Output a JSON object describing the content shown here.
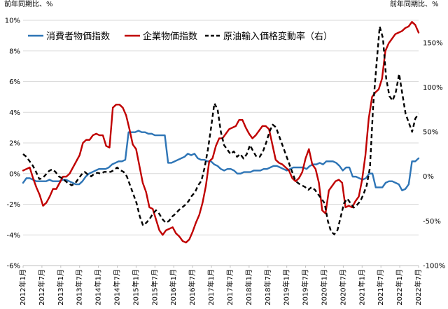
{
  "chart_data": {
    "type": "line",
    "left_axis_unit": "前年同期比、%",
    "right_axis_unit": "前年同期比、%",
    "left_ylim": [
      -6,
      10
    ],
    "left_ticks": [
      "-6%",
      "-4%",
      "-2%",
      "0%",
      "2%",
      "4%",
      "6%",
      "8%",
      "10%"
    ],
    "right_ylim": [
      -100,
      175
    ],
    "right_ticks": [
      "-100%",
      "-50%",
      "0%",
      "50%",
      "100%",
      "150%"
    ],
    "x_tick_labels": [
      "2012年1月",
      "2012年7月",
      "2013年1月",
      "2013年7月",
      "2014年1月",
      "2014年7月",
      "2015年1月",
      "2015年7月",
      "2016年1月",
      "2016年7月",
      "2017年1月",
      "2017年7月",
      "2018年1月",
      "2018年7月",
      "2019年1月",
      "2019年7月",
      "2020年1月",
      "2020年7月",
      "2021年1月",
      "2021年7月",
      "2022年1月",
      "2022年7月"
    ],
    "legend_position": "top-left",
    "grid": "horizontal",
    "series": [
      {
        "name": "消費者物価指数",
        "axis": "left",
        "color": "#2e75b6",
        "dash": "solid",
        "values": [
          -0.6,
          -0.3,
          -0.3,
          -0.4,
          -0.5,
          -0.5,
          -0.5,
          -0.5,
          -0.4,
          -0.5,
          -0.5,
          -0.5,
          -0.4,
          -0.4,
          -0.5,
          -0.6,
          -0.7,
          -0.7,
          -0.5,
          -0.2,
          0.0,
          0.1,
          0.2,
          0.3,
          0.3,
          0.3,
          0.4,
          0.6,
          0.7,
          0.8,
          0.8,
          0.9,
          2.7,
          2.7,
          2.7,
          2.8,
          2.7,
          2.7,
          2.6,
          2.6,
          2.5,
          2.5,
          2.5,
          2.5,
          0.7,
          0.7,
          0.8,
          0.9,
          1.0,
          1.1,
          1.3,
          1.2,
          1.3,
          1.0,
          0.9,
          0.9,
          0.8,
          0.8,
          0.6,
          0.5,
          0.3,
          0.2,
          0.3,
          0.3,
          0.2,
          0.0,
          0.0,
          0.1,
          0.1,
          0.1,
          0.2,
          0.2,
          0.2,
          0.3,
          0.3,
          0.4,
          0.5,
          0.5,
          0.4,
          0.3,
          0.2,
          0.3,
          0.4,
          0.4,
          0.4,
          0.4,
          0.3,
          0.5,
          0.6,
          0.6,
          0.7,
          0.6,
          0.8,
          0.8,
          0.8,
          0.7,
          0.5,
          0.2,
          0.4,
          0.4,
          -0.2,
          -0.2,
          -0.3,
          -0.4,
          -0.3,
          0.0,
          0.0,
          -0.9,
          -0.9,
          -0.9,
          -0.6,
          -0.5,
          -0.5,
          -0.6,
          -0.7,
          -1.1,
          -1.0,
          -0.7,
          0.8,
          0.8,
          1.0
        ]
      },
      {
        "name": "企業物価指数",
        "axis": "left",
        "color": "#c00000",
        "dash": "solid",
        "values": [
          0.2,
          0.3,
          0.4,
          -0.3,
          -0.9,
          -1.4,
          -2.1,
          -1.9,
          -1.5,
          -1.0,
          -1.0,
          -0.6,
          -0.2,
          -0.2,
          0.0,
          0.4,
          0.8,
          1.2,
          2.0,
          2.2,
          2.2,
          2.5,
          2.6,
          2.5,
          2.5,
          1.8,
          1.7,
          4.3,
          4.5,
          4.5,
          4.3,
          3.8,
          2.9,
          1.9,
          1.6,
          0.5,
          -0.6,
          -1.2,
          -2.2,
          -2.3,
          -3.0,
          -3.7,
          -4.0,
          -3.7,
          -3.6,
          -3.5,
          -3.9,
          -4.1,
          -4.4,
          -4.5,
          -4.3,
          -3.8,
          -3.2,
          -2.7,
          -1.9,
          -0.8,
          0.8,
          1.0,
          1.8,
          2.3,
          2.3,
          2.6,
          2.9,
          3.0,
          3.1,
          3.5,
          3.5,
          3.0,
          2.6,
          2.3,
          2.5,
          2.8,
          3.1,
          3.1,
          2.9,
          1.9,
          0.9,
          0.7,
          0.6,
          0.4,
          0.2,
          -0.3,
          -0.5,
          -0.3,
          0.1,
          1.0,
          1.6,
          0.6,
          0.3,
          -0.6,
          -2.4,
          -2.6,
          -1.1,
          -0.8,
          -0.5,
          -0.4,
          -0.6,
          -2.2,
          -2.1,
          -2.2,
          -1.8,
          -1.5,
          -0.4,
          1.2,
          3.6,
          5.0,
          5.3,
          5.5,
          6.2,
          8.0,
          8.5,
          8.8,
          9.1,
          9.2,
          9.3,
          9.5,
          9.6,
          9.9,
          9.7,
          9.2
        ]
      },
      {
        "name": "原油輸入価格変動率（右）",
        "axis": "right",
        "color": "#000000",
        "dash": "dashed",
        "values": [
          25,
          22,
          17,
          12,
          5,
          -3,
          -2,
          2,
          6,
          8,
          5,
          0,
          -2,
          -5,
          -8,
          -10,
          -8,
          -3,
          2,
          5,
          2,
          0,
          3,
          4,
          3,
          5,
          5,
          5,
          7,
          10,
          7,
          5,
          0,
          -10,
          -20,
          -30,
          -45,
          -55,
          -52,
          -48,
          -42,
          -38,
          -42,
          -48,
          -52,
          -50,
          -45,
          -42,
          -38,
          -35,
          -32,
          -28,
          -22,
          -18,
          -10,
          -5,
          10,
          30,
          55,
          82,
          75,
          50,
          35,
          30,
          25,
          28,
          22,
          25,
          20,
          25,
          35,
          28,
          22,
          22,
          28,
          38,
          50,
          58,
          55,
          45,
          35,
          25,
          15,
          5,
          -5,
          -8,
          -10,
          -12,
          -15,
          -12,
          -15,
          -20,
          -25,
          -30,
          -50,
          -62,
          -65,
          -60,
          -45,
          -30,
          -25,
          -30,
          -35,
          -32,
          -28,
          -20,
          -10,
          10,
          80,
          125,
          168,
          155,
          110,
          90,
          85,
          95,
          115,
          92,
          70,
          60,
          50,
          65,
          70
        ]
      }
    ]
  }
}
